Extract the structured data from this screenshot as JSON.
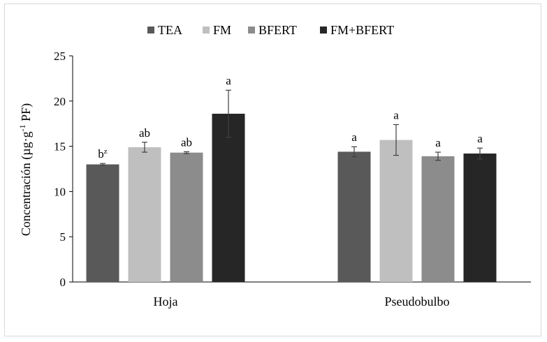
{
  "chart_data": {
    "type": "bar",
    "categories": [
      "Hoja",
      "Pseudobulbo"
    ],
    "series": [
      {
        "name": "TEA",
        "values": [
          13.0,
          14.4
        ],
        "errors": [
          0.1,
          0.55
        ],
        "labels": [
          "b",
          "a"
        ],
        "color": "#595959"
      },
      {
        "name": "FM",
        "values": [
          14.9,
          15.7
        ],
        "errors": [
          0.55,
          1.7
        ],
        "labels": [
          "ab",
          "a"
        ],
        "color": "#bfbfbf"
      },
      {
        "name": "BFERT",
        "values": [
          14.3,
          13.9
        ],
        "errors": [
          0.1,
          0.45
        ],
        "labels": [
          "ab",
          "a"
        ],
        "color": "#8c8c8c"
      },
      {
        "name": "FM+BFERT",
        "values": [
          18.6,
          14.2
        ],
        "errors": [
          2.6,
          0.6
        ],
        "labels": [
          "a",
          "a"
        ],
        "color": "#262626"
      }
    ],
    "superscript_note": {
      "series_index": 0,
      "category_index": 0,
      "text": "z"
    },
    "ylabel_main": "Concentración (µg·g",
    "ylabel_sup": "-1",
    "ylabel_end": " PF)",
    "ylim": [
      0,
      25
    ],
    "yticks": [
      0,
      5,
      10,
      15,
      20,
      25
    ],
    "grid": false,
    "legend_position": "top"
  }
}
